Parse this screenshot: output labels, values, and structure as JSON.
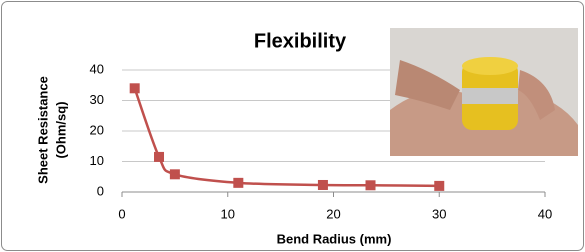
{
  "chart_data": {
    "type": "line",
    "title": "Flexibility",
    "xlabel": "Bend Radius (mm)",
    "ylabel": [
      "Sheet Resistance",
      "(Ohm/sq)"
    ],
    "series": [
      {
        "color": "#c0504d",
        "x": [
          1.2,
          3.5,
          5,
          11,
          19,
          23.5,
          30
        ],
        "values": [
          34,
          11.5,
          5.8,
          3,
          2.3,
          2.2,
          2
        ]
      }
    ],
    "xlim": [
      0,
      40
    ],
    "xticks": [
      0,
      10,
      20,
      30,
      40
    ],
    "ylim": [
      0,
      40
    ],
    "yticks": [
      0,
      10,
      20,
      30,
      40
    ],
    "grid": true,
    "smooth": true
  }
}
